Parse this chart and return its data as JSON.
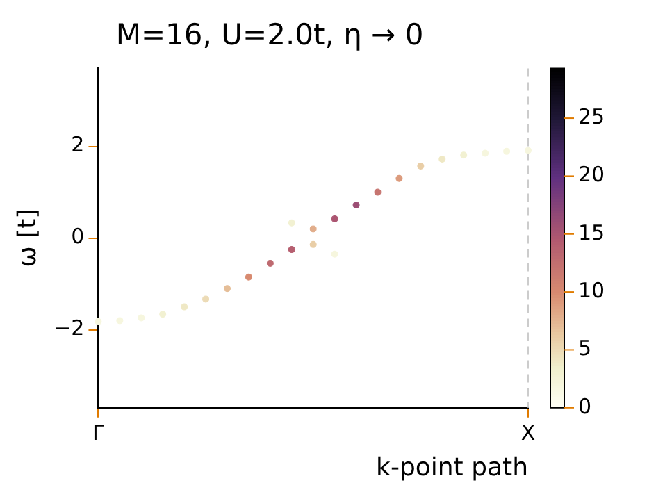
{
  "chart_data": {
    "type": "scatter",
    "title": "M=16, U=2.0t, η → 0",
    "xlabel": "k-point path",
    "ylabel": "ω [t]",
    "categories": [
      "Γ",
      null,
      null,
      null,
      null,
      null,
      null,
      null,
      null,
      null,
      null,
      null,
      null,
      null,
      null,
      null,
      null,
      null,
      null,
      null,
      "X"
    ],
    "ylim": [
      -3.7,
      3.7
    ],
    "yticks": [
      -2,
      0,
      2
    ],
    "clim": [
      0,
      29.3
    ],
    "cticks": [
      0,
      5,
      10,
      15,
      20,
      25
    ],
    "grid": false,
    "legend": false,
    "marker": "circle",
    "ref_lines": [
      {
        "axis": "x",
        "value": "X",
        "color": "#cccccc",
        "line_style": "dashed"
      }
    ],
    "series": [
      {
        "values": [
          -1.82,
          -1.8,
          -1.74,
          -1.66,
          -1.5,
          -1.33,
          -1.1,
          -0.85,
          -0.55,
          -0.25,
          -0.14,
          -0.35,
          null,
          null,
          null,
          null,
          null,
          null,
          null,
          null,
          null
        ],
        "cvalues": [
          2,
          2,
          2,
          3,
          4,
          5,
          7,
          10,
          13,
          14,
          6,
          2,
          null,
          null,
          null,
          null,
          null,
          null,
          null,
          null,
          null
        ],
        "colors": [
          "#f6f6de",
          "#f6f6de",
          "#f6f6de",
          "#f2f1d2",
          "#efe8c5",
          "#ecdbb6",
          "#e5be98",
          "#d88a70",
          "#be6a70",
          "#b65f70",
          "#e9cea7",
          "#f6f6de",
          null,
          null,
          null,
          null,
          null,
          null,
          null,
          null,
          null
        ]
      },
      {
        "values": [
          null,
          null,
          null,
          null,
          null,
          null,
          null,
          null,
          null,
          0.33,
          0.2,
          0.42,
          0.72,
          1.0,
          1.3,
          1.57,
          1.72,
          1.81,
          1.85,
          1.89,
          1.91
        ],
        "cvalues": [
          null,
          null,
          null,
          null,
          null,
          null,
          null,
          null,
          null,
          3,
          8,
          15,
          16,
          12,
          9,
          6,
          4,
          3,
          2,
          2,
          2
        ],
        "colors": [
          null,
          null,
          null,
          null,
          null,
          null,
          null,
          null,
          null,
          "#f2f1d2",
          "#e1ad8b",
          "#ab5571",
          "#9c4e74",
          "#c67570",
          "#dc9b7d",
          "#e9cea7",
          "#efe8c5",
          "#f2f1d2",
          "#f6f6de",
          "#f6f6de",
          "#f6f6de"
        ]
      }
    ]
  }
}
